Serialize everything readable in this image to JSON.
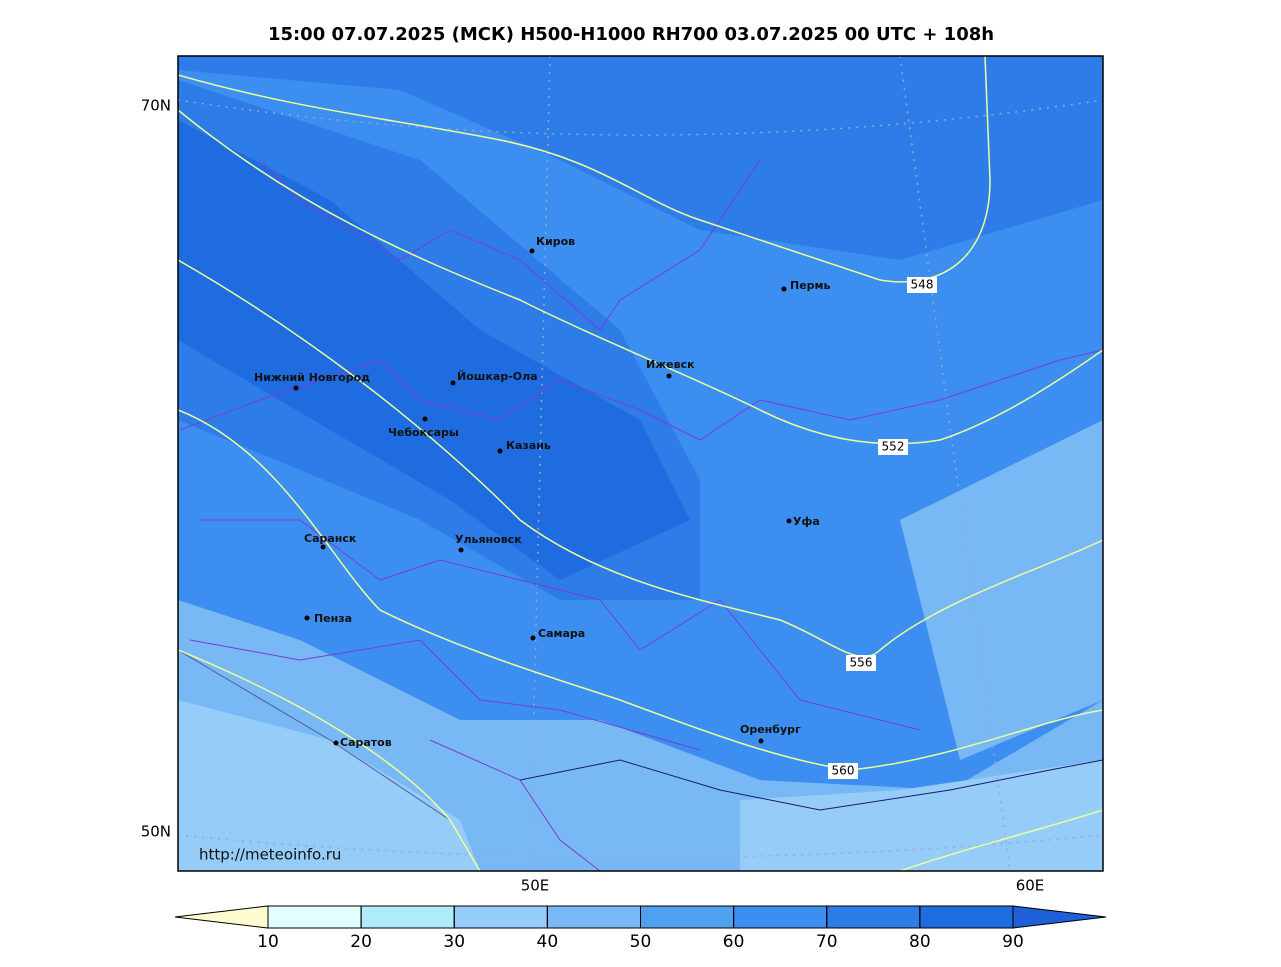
{
  "title": "15:00 07.07.2025 (МСК) H500-H1000 RH700 03.07.2025 00 UTC + 108h",
  "lat_labels": [
    "70N",
    "50N"
  ],
  "lon_labels": [
    "50E",
    "60E"
  ],
  "source": "http://meteoinfo.ru",
  "cities": [
    "Киров",
    "Пермь",
    "Ижевск",
    "Йошкар-Ола",
    "Нижний Новгород",
    "Чебоксары",
    "Казань",
    "Уфа",
    "Саранск",
    "Ульяновск",
    "Пенза",
    "Самара",
    "Оренбург",
    "Саратов"
  ],
  "contour_labels": [
    548,
    552,
    556,
    560
  ],
  "colorbar": {
    "ticks": [
      10,
      20,
      30,
      40,
      50,
      60,
      70,
      80,
      90
    ],
    "colors": [
      "#e0ffff",
      "#b0ecf8",
      "#96cdf8",
      "#78b8f5",
      "#50a0f0",
      "#3c8ef0",
      "#2e7ce8",
      "#1f6be0"
    ],
    "under_color": "#fffbd0",
    "over_color": "#1f5fd8"
  }
}
